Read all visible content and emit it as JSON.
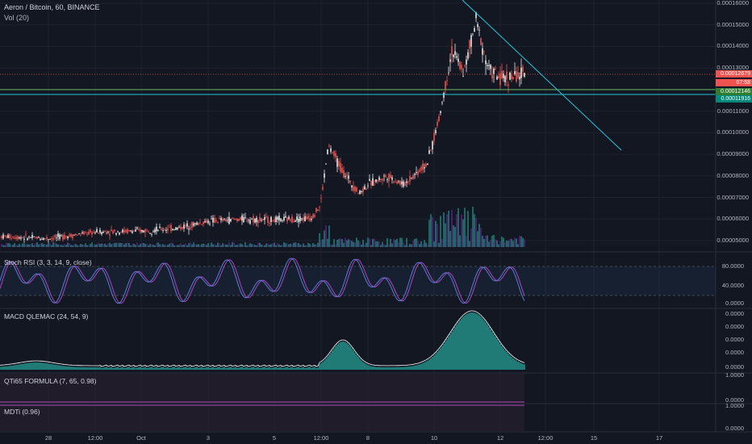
{
  "header": {
    "title": "Aeron / Bitcoin, 60, BINANCE",
    "vol_label": "Vol (20)"
  },
  "price_axis": [
    "0.00016000",
    "0.00015000",
    "0.00014000",
    "0.00013000",
    "0.00011000",
    "0.00010000",
    "0.00009000",
    "0.00008000",
    "0.00007000",
    "0.00006000",
    "0.00005000"
  ],
  "price_badges": {
    "last_price": "0.00012679",
    "countdown": "07:58",
    "green_level": "0.00012146",
    "cyan_level": "0.00011916"
  },
  "panels": {
    "stoch_rsi": {
      "label": "Stoch RSI (3, 3, 14, 9, close)",
      "axis": [
        "80.0000",
        "40.0000",
        "0.0000"
      ]
    },
    "macd": {
      "label": "MACD QLEMAC (24, 54, 9)",
      "axis": [
        "0.0000",
        "0.0000",
        "0.0000",
        "0.0000",
        "0.0000"
      ]
    },
    "qti": {
      "label": "QTi65 FORMULA (7, 65, 0.98)",
      "axis": [
        "1.0000",
        "0.0000"
      ]
    },
    "mdti": {
      "label": "MDTi (0.96)",
      "axis": [
        "1.0000",
        "0.0000"
      ]
    }
  },
  "time_axis": [
    "28",
    "12:00",
    "Oct",
    "3",
    "5",
    "12:00",
    "8",
    "10",
    "12",
    "12:00",
    "15",
    "17"
  ],
  "colors": {
    "background": "#131722",
    "up": "#e8e8e8",
    "down": "#ef5350",
    "cyan": "#26c6da",
    "green_line": "#66bb6a",
    "stoch_k": "#5b7bd9",
    "stoch_d": "#ab47bc",
    "macd_hist": "#26a69a",
    "last_price_badge": "#ef5350"
  },
  "chart_data": {
    "type": "candlestick",
    "symbol": "Aeron / Bitcoin",
    "interval": "60",
    "exchange": "BINANCE",
    "y_range": [
      4.5e-05,
      0.00016
    ],
    "close_path": [
      {
        "x": "Sep 27",
        "close": 5.2e-05
      },
      {
        "x": "Sep 28",
        "close": 5.1e-05
      },
      {
        "x": "Sep 29",
        "close": 5.4e-05
      },
      {
        "x": "Oct 1",
        "close": 5.45e-05
      },
      {
        "x": "Oct 2",
        "close": 5.58e-05
      },
      {
        "x": "Oct 3",
        "close": 5.9e-05
      },
      {
        "x": "Oct 4",
        "close": 6e-05
      },
      {
        "x": "Oct 5",
        "close": 5.95e-05
      },
      {
        "x": "Oct 6",
        "close": 6.05e-05
      },
      {
        "x": "Oct 6 12:00",
        "close": 6.6e-05
      },
      {
        "x": "Oct 6 14:00",
        "close": 9.4e-05
      },
      {
        "x": "Oct 7",
        "close": 8.2e-05
      },
      {
        "x": "Oct 7 12:00",
        "close": 7.2e-05
      },
      {
        "x": "Oct 8",
        "close": 7.6e-05
      },
      {
        "x": "Oct 9",
        "close": 8e-05
      },
      {
        "x": "Oct 9 12:00",
        "close": 7.6e-05
      },
      {
        "x": "Oct 10",
        "close": 8.6e-05
      },
      {
        "x": "Oct 10 12:00",
        "close": 0.000108
      },
      {
        "x": "Oct 11",
        "close": 0.000138
      },
      {
        "x": "Oct 11 12:00",
        "close": 0.000128
      },
      {
        "x": "Oct 11 18:00",
        "close": 0.000152
      },
      {
        "x": "Oct 12",
        "close": 0.00013
      },
      {
        "x": "Oct 12 12:00",
        "close": 0.000125
      },
      {
        "x": "Oct 13",
        "close": 0.0001268
      }
    ],
    "levels": [
      0.00012146,
      0.00011916
    ],
    "trendline": {
      "from": {
        "x": "Oct 10 18:00",
        "y": 0.000163
      },
      "to": {
        "x": "Oct 15 18:00",
        "y": 9e-05
      }
    }
  }
}
